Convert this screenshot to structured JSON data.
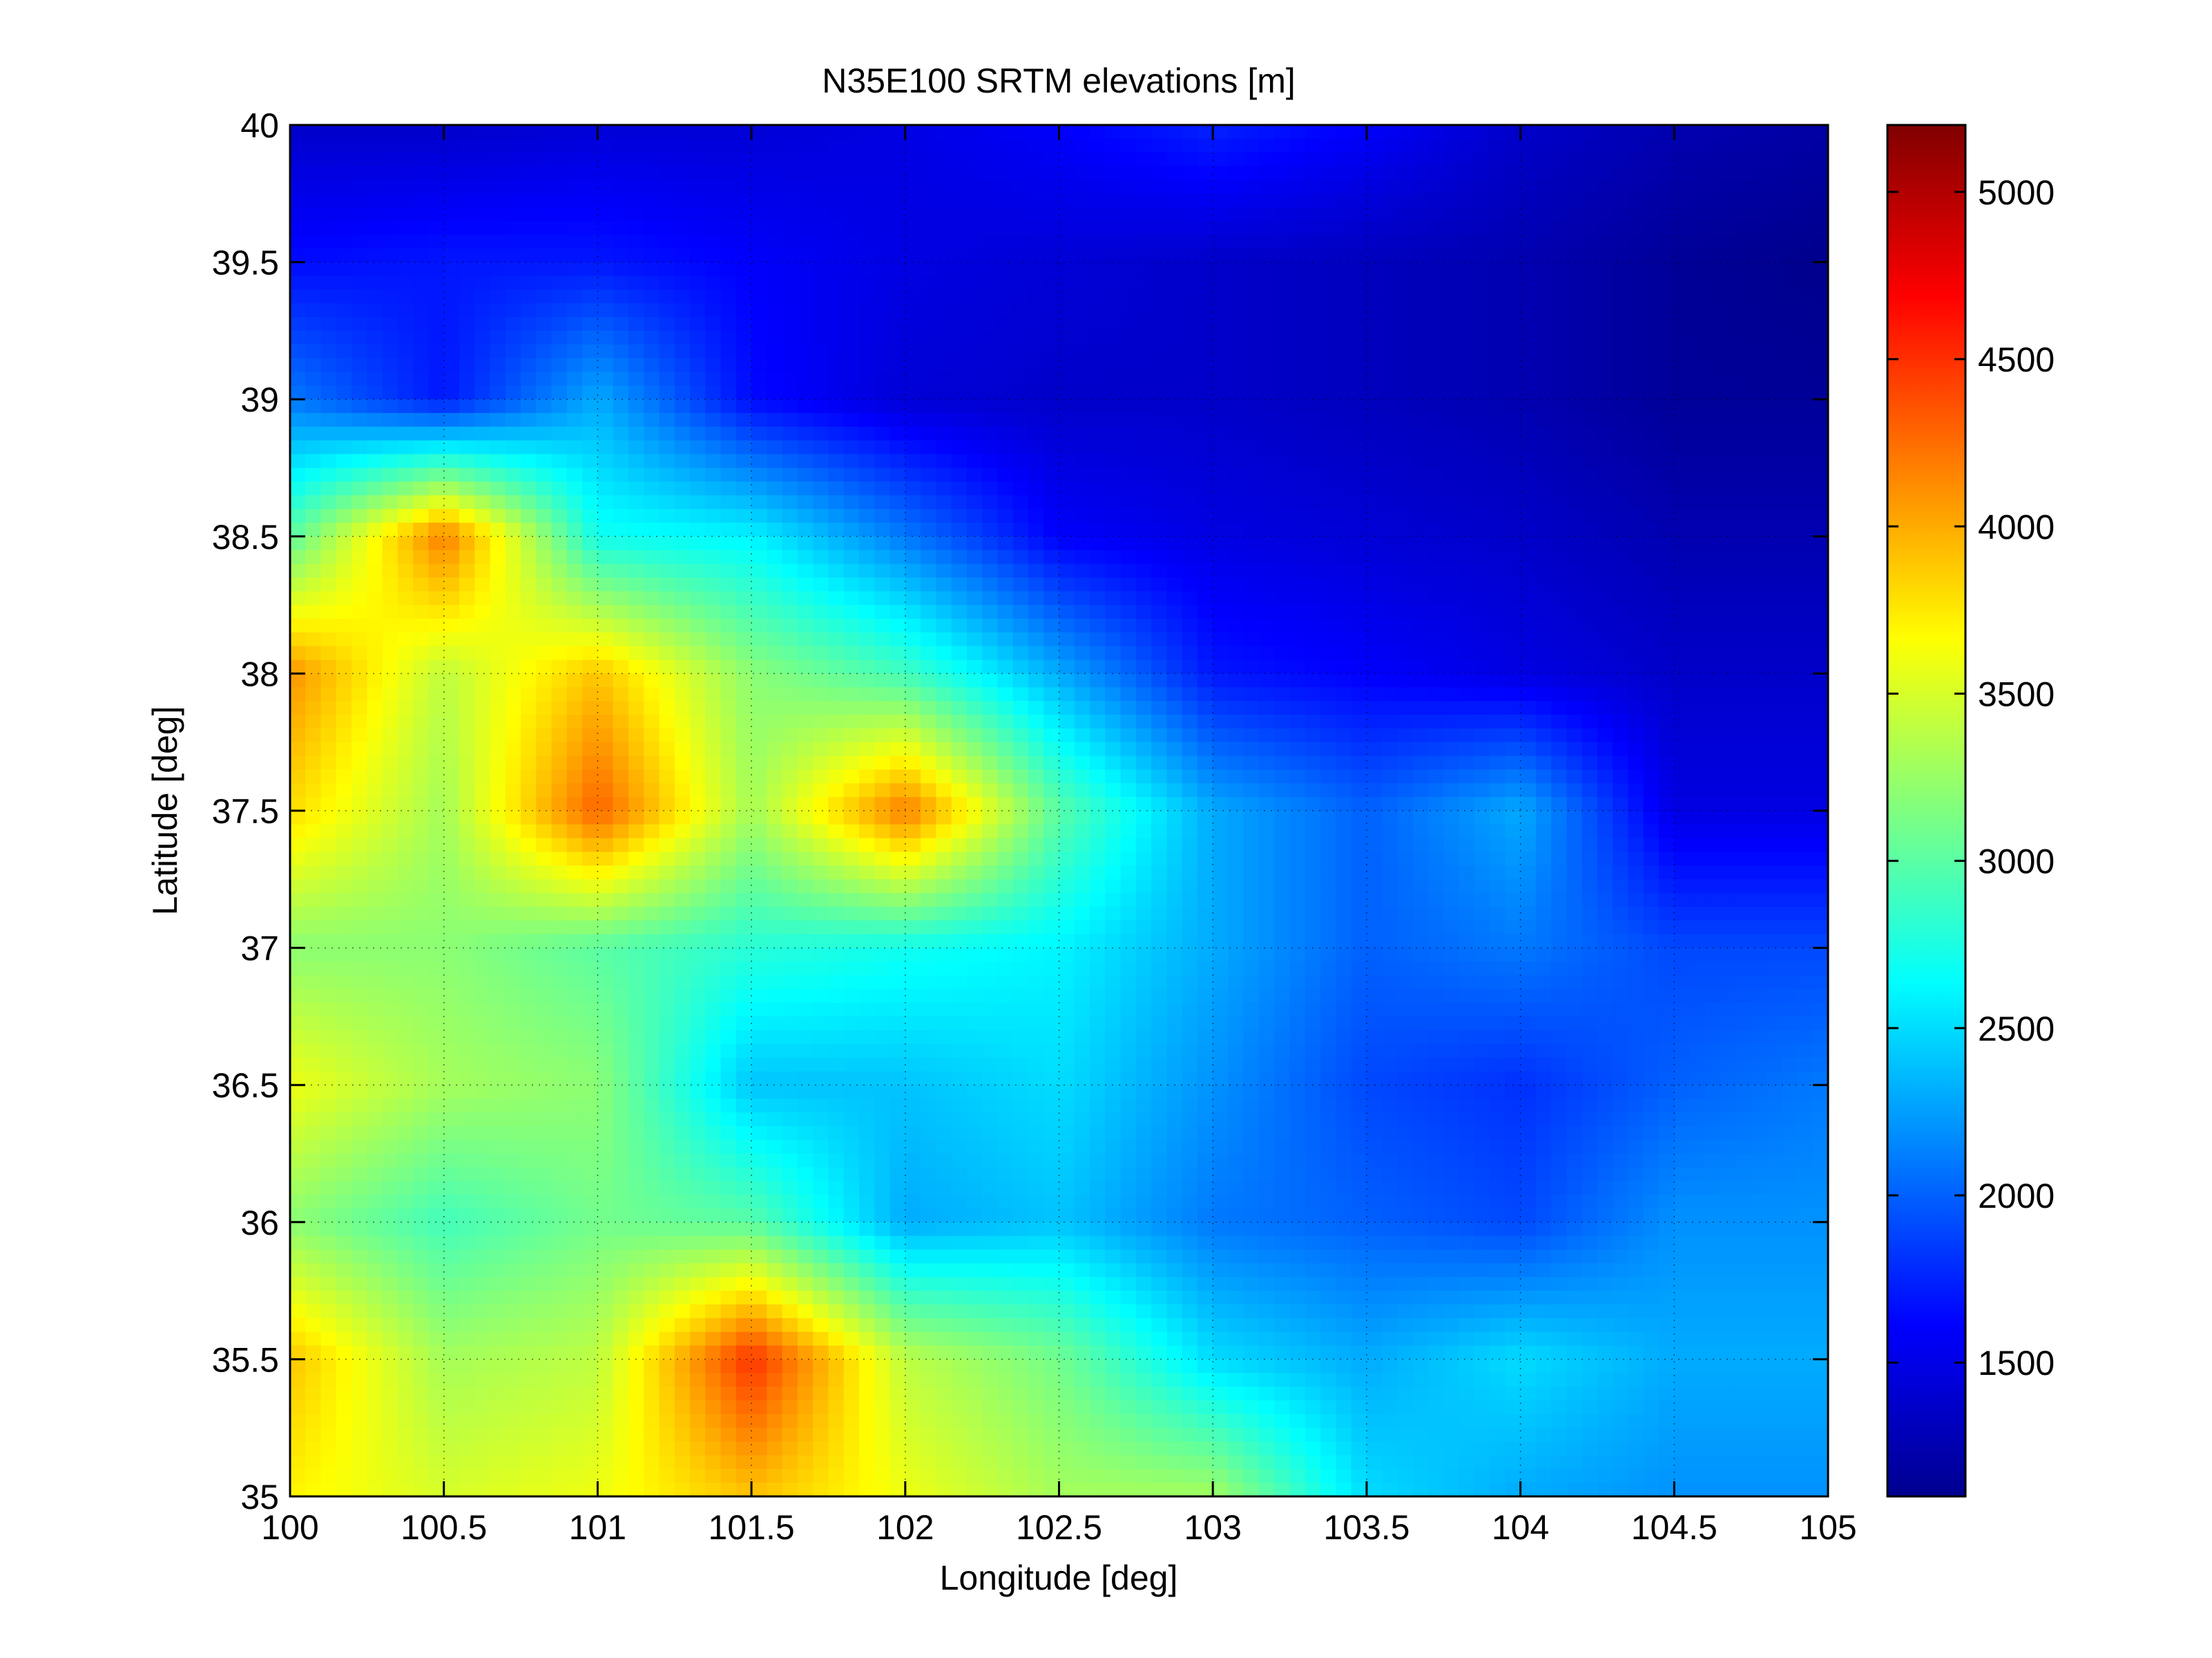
{
  "chart_data": {
    "type": "heatmap",
    "title": "N35E100 SRTM elevations [m]",
    "xlabel": "Longitude [deg]",
    "ylabel": "Latitude [deg]",
    "xlim": [
      100,
      105
    ],
    "ylim": [
      35,
      40
    ],
    "xticks": [
      100,
      100.5,
      101,
      101.5,
      102,
      102.5,
      103,
      103.5,
      104,
      104.5,
      105
    ],
    "yticks": [
      35,
      35.5,
      36,
      36.5,
      37,
      37.5,
      38,
      38.5,
      39,
      39.5,
      40
    ],
    "xtick_labels": [
      "100",
      "100.5",
      "101",
      "101.5",
      "102",
      "102.5",
      "103",
      "103.5",
      "104",
      "104.5",
      "105"
    ],
    "ytick_labels": [
      "35",
      "35.5",
      "36",
      "36.5",
      "37",
      "37.5",
      "38",
      "38.5",
      "39",
      "39.5",
      "40"
    ],
    "grid": "dotted",
    "colormap": "jet",
    "colorbar": {
      "clim": [
        1100,
        5200
      ],
      "ticks": [
        1500,
        2000,
        2500,
        3000,
        3500,
        4000,
        4500,
        5000
      ],
      "tick_labels": [
        "1500",
        "2000",
        "2500",
        "3000",
        "3500",
        "4000",
        "4500",
        "5000"
      ]
    },
    "elevation_grid": {
      "lon": [
        100.0,
        100.5,
        101.0,
        101.5,
        102.0,
        102.5,
        103.0,
        103.5,
        104.0,
        104.5,
        105.0
      ],
      "lat": [
        40.0,
        39.5,
        39.0,
        38.5,
        38.0,
        37.5,
        37.0,
        36.5,
        36.0,
        35.5,
        35.0
      ],
      "values": [
        [
          1400,
          1400,
          1450,
          1450,
          1500,
          1600,
          1750,
          1600,
          1400,
          1300,
          1250
        ],
        [
          1650,
          1700,
          1700,
          1600,
          1500,
          1450,
          1400,
          1350,
          1300,
          1200,
          1150
        ],
        [
          2100,
          1700,
          2300,
          1650,
          1450,
          1400,
          1400,
          1350,
          1300,
          1200,
          1200
        ],
        [
          3000,
          4200,
          2700,
          2600,
          2100,
          1600,
          1500,
          1450,
          1400,
          1300,
          1300
        ],
        [
          4100,
          3400,
          3900,
          3200,
          2900,
          2300,
          1700,
          1600,
          1500,
          1400,
          1400
        ],
        [
          3800,
          3300,
          4300,
          3300,
          4200,
          3000,
          2300,
          2000,
          2300,
          1500,
          1500
        ],
        [
          3200,
          3200,
          3000,
          2800,
          2700,
          2600,
          2300,
          2000,
          2100,
          1900,
          1900
        ],
        [
          3600,
          3300,
          3200,
          2400,
          2400,
          2500,
          2200,
          1900,
          1800,
          2000,
          2100
        ],
        [
          3200,
          2900,
          3100,
          3000,
          2300,
          2400,
          2100,
          2000,
          1900,
          2200,
          2200
        ],
        [
          3900,
          3300,
          3400,
          4500,
          3400,
          3100,
          2500,
          2300,
          2500,
          2300,
          2300
        ],
        [
          3700,
          3500,
          3600,
          3900,
          3600,
          3300,
          3300,
          2500,
          2300,
          2200,
          2200
        ]
      ]
    }
  }
}
